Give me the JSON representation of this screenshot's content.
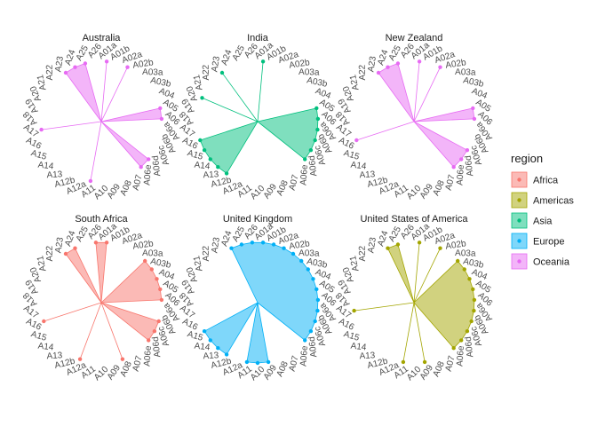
{
  "chart_data": {
    "type": "radar",
    "legend": {
      "title": "region",
      "position": "right",
      "entries": [
        {
          "name": "Africa",
          "color": "#F8766D"
        },
        {
          "name": "Americas",
          "color": "#A3A500"
        },
        {
          "name": "Asia",
          "color": "#00BF7D"
        },
        {
          "name": "Europe",
          "color": "#00B0F6"
        },
        {
          "name": "Oceania",
          "color": "#E76BF3"
        }
      ]
    },
    "categories": [
      "A01a",
      "A01b",
      "A02a",
      "A02b",
      "A03a",
      "A03b",
      "A04",
      "A05",
      "A06",
      "A06a",
      "A06b",
      "A06c",
      "A06d",
      "A06e",
      "A07",
      "A08",
      "A09",
      "A10",
      "A11",
      "A12a",
      "A12b",
      "A13",
      "A14",
      "A15",
      "A16",
      "A17",
      "A18",
      "A19",
      "A20",
      "A21",
      "A22",
      "A23",
      "A24",
      "A25",
      "A26"
    ],
    "facets": [
      {
        "title": "Australia",
        "region": "Oceania",
        "values": [
          1,
          0,
          1,
          0,
          0,
          0,
          0,
          1,
          1,
          0,
          0,
          0,
          1,
          1,
          0,
          0,
          0,
          0,
          1,
          0,
          0,
          0,
          0,
          0,
          0,
          1,
          0,
          0,
          0,
          0,
          0,
          1,
          1,
          1,
          0
        ]
      },
      {
        "title": "India",
        "region": "Asia",
        "values": [
          1,
          0,
          0,
          0,
          0,
          0,
          0,
          1,
          1,
          1,
          1,
          1,
          1,
          0,
          0,
          0,
          0,
          0,
          0,
          0,
          1,
          1,
          1,
          1,
          1,
          0,
          0,
          0,
          1,
          0,
          0,
          1,
          0,
          0,
          0
        ]
      },
      {
        "title": "New Zealand",
        "region": "Oceania",
        "values": [
          1,
          0,
          1,
          0,
          0,
          0,
          0,
          1,
          1,
          0,
          0,
          1,
          1,
          1,
          0,
          0,
          0,
          0,
          0,
          0,
          0,
          0,
          0,
          0,
          1,
          0,
          0,
          0,
          0,
          0,
          0,
          1,
          1,
          1,
          0
        ]
      },
      {
        "title": "South Africa",
        "region": "Africa",
        "values": [
          1,
          0,
          0,
          0,
          1,
          1,
          1,
          1,
          1,
          0,
          1,
          1,
          1,
          0,
          0,
          1,
          0,
          0,
          0,
          1,
          0,
          0,
          0,
          0,
          1,
          0,
          0,
          0,
          0,
          0,
          0,
          1,
          1,
          0,
          1
        ]
      },
      {
        "title": "United Kingdom",
        "region": "Europe",
        "values": [
          1,
          1,
          1,
          1,
          1,
          1,
          1,
          1,
          1,
          1,
          1,
          1,
          1,
          0,
          0,
          0,
          1,
          1,
          1,
          0,
          1,
          1,
          1,
          1,
          0,
          0,
          0,
          0,
          0,
          0,
          0,
          0,
          1,
          1,
          1
        ]
      },
      {
        "title": "United States of America",
        "region": "Americas",
        "values": [
          1,
          0,
          1,
          0,
          1,
          1,
          1,
          1,
          1,
          1,
          1,
          1,
          1,
          1,
          0,
          0,
          1,
          0,
          1,
          0,
          0,
          0,
          0,
          0,
          0,
          1,
          0,
          0,
          0,
          0,
          0,
          0,
          1,
          1,
          0
        ]
      }
    ]
  }
}
